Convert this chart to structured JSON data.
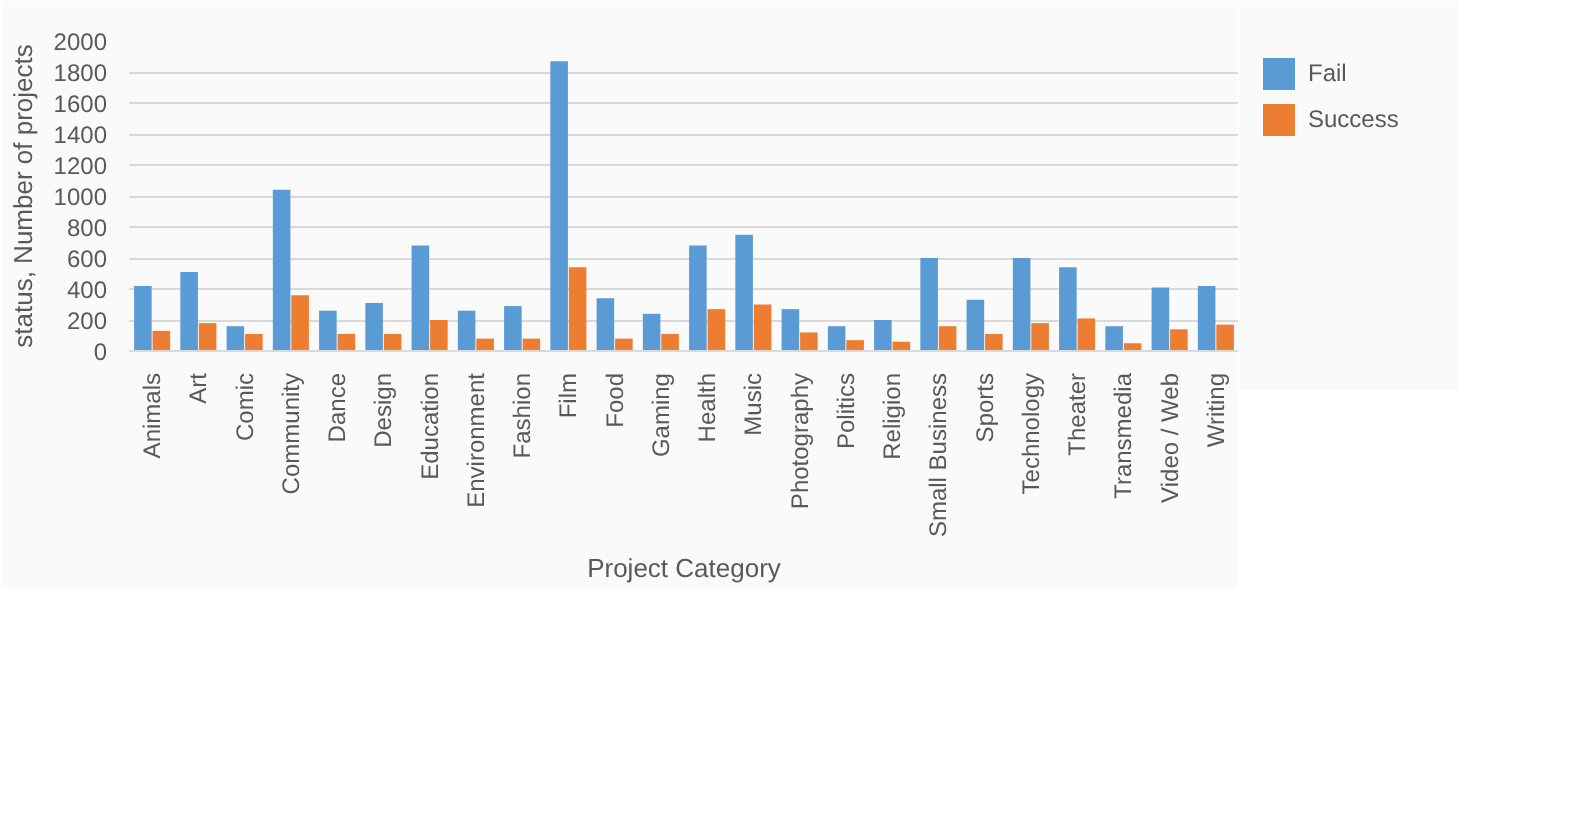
{
  "chart_data": {
    "type": "bar",
    "xlabel": "Project Category",
    "ylabel": "status, Number of projects",
    "categories": [
      "Animals",
      "Art",
      "Comic",
      "Community",
      "Dance",
      "Design",
      "Education",
      "Environment",
      "Fashion",
      "Film",
      "Food",
      "Gaming",
      "Health",
      "Music",
      "Photography",
      "Politics",
      "Religion",
      "Small Business",
      "Sports",
      "Technology",
      "Theater",
      "Transmedia",
      "Video / Web",
      "Writing"
    ],
    "series": [
      {
        "name": "Fail",
        "color": "#5b9bd5",
        "values": [
          420,
          510,
          160,
          1040,
          260,
          310,
          680,
          260,
          290,
          1870,
          340,
          240,
          680,
          750,
          270,
          160,
          200,
          600,
          330,
          600,
          540,
          160,
          410,
          420
        ]
      },
      {
        "name": "Success",
        "color": "#ed7d31",
        "values": [
          130,
          180,
          110,
          360,
          110,
          110,
          200,
          80,
          80,
          540,
          80,
          110,
          270,
          300,
          120,
          70,
          60,
          160,
          110,
          180,
          210,
          50,
          140,
          170
        ]
      }
    ],
    "ylim": [
      0,
      2000
    ],
    "yticks": [
      0,
      200,
      400,
      600,
      800,
      1000,
      1200,
      1400,
      1600,
      1800,
      2000
    ],
    "grid": "y",
    "legend": "right"
  }
}
